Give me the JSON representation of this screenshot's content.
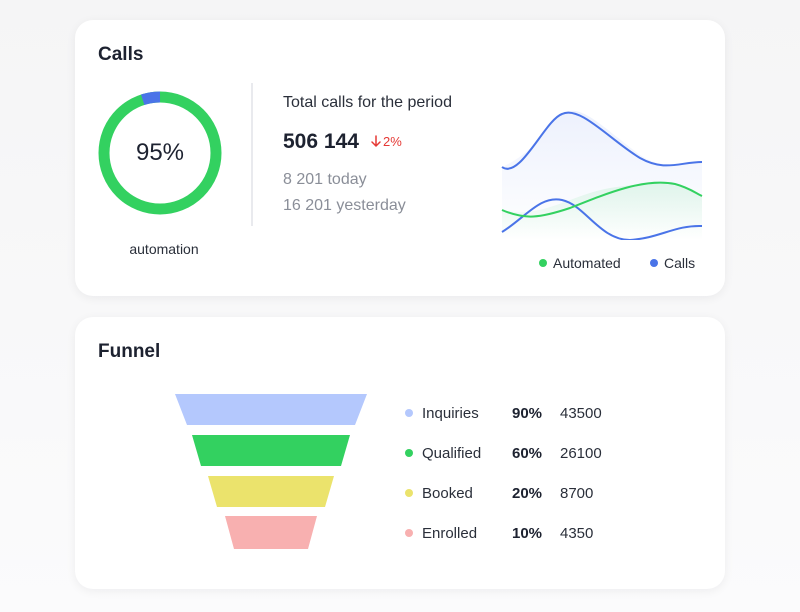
{
  "calls": {
    "title": "Calls",
    "automation_percent": 95,
    "automation_percent_label": "95%",
    "automation_caption": "automation",
    "total_heading": "Total calls for the period",
    "total_value": "506 144",
    "change": "2%",
    "change_direction": "down",
    "today": "8 201 today",
    "yesterday": "16 201 yesterday",
    "legend": [
      {
        "label": "Automated",
        "color": "#33d160"
      },
      {
        "label": "Calls",
        "color": "#4a74e8"
      }
    ],
    "colors": {
      "donut_main": "#33d160",
      "donut_accent": "#4a74e8",
      "negative": "#e53935"
    }
  },
  "funnel": {
    "title": "Funnel",
    "stages": [
      {
        "label": "Inquiries",
        "percent": "90%",
        "count": "43500",
        "color": "#b4c8fd"
      },
      {
        "label": "Qualified",
        "percent": "60%",
        "count": "26100",
        "color": "#33d160"
      },
      {
        "label": "Booked",
        "percent": "20%",
        "count": "8700",
        "color": "#ebe36c"
      },
      {
        "label": "Enrolled",
        "percent": "10%",
        "count": "4350",
        "color": "#f8b0b0"
      }
    ]
  }
}
